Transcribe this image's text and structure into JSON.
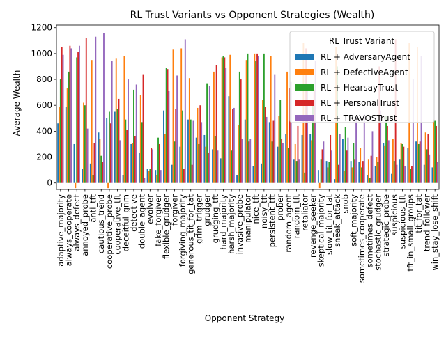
{
  "chart_data": {
    "type": "bar",
    "title": "RL Trust Variants vs Opponent Strategies (Wealth)",
    "xlabel": "Opponent Strategy",
    "ylabel": "Average Wealth",
    "ylim": [
      -50,
      1220
    ],
    "yticks": [
      0,
      200,
      400,
      600,
      800,
      1000,
      1200
    ],
    "grid": false,
    "legend": {
      "title": "RL Trust Variant",
      "placement": "top-right"
    },
    "categories": [
      "adaptive_majority",
      "always_cooperate",
      "always_defect",
      "annoyed_probe",
      "anti_tft",
      "cautious_trend",
      "cooperative_probe",
      "cooperative_tft",
      "deceitful_grim",
      "detective",
      "double_agent",
      "evolver",
      "fake_forgiver",
      "flexible_grudger",
      "forgiver",
      "forgiving_majority",
      "generous_tit_for_tat",
      "grim_trigger",
      "grudger",
      "grudging_tft",
      "hard_majority",
      "harsh_majority",
      "invasive_probe",
      "manipulator",
      "nice_tft",
      "noisy_tft",
      "persistent_tft",
      "prober",
      "random_agent",
      "random_tft",
      "retaliator",
      "revenge_seeker",
      "skeptical_majority",
      "slow_tit_for_tat",
      "sneak_attack",
      "snob",
      "soft_majority",
      "sometimes_cooperate",
      "sometimes_defect",
      "stochastic_grudger",
      "strategic_probe",
      "suspicious",
      "suspicious_tft",
      "tft_in_small_groups",
      "tit_for_tat",
      "trend_follower",
      "win_stay_lose_shift"
    ],
    "series": [
      {
        "name": "RL + AdversaryAgent",
        "color": "#1f77b4",
        "values": [
          460,
          590,
          300,
          110,
          150,
          390,
          500,
          550,
          60,
          300,
          230,
          110,
          100,
          560,
          140,
          280,
          490,
          350,
          370,
          260,
          190,
          670,
          60,
          490,
          130,
          150,
          470,
          280,
          380,
          180,
          370,
          380,
          100,
          170,
          30,
          340,
          170,
          160,
          60,
          130,
          310,
          70,
          180,
          270,
          320,
          140,
          120
        ]
      },
      {
        "name": "RL + DefectiveAgent",
        "color": "#ff7f0e",
        "values": [
          590,
          730,
          -40,
          620,
          950,
          340,
          -40,
          960,
          980,
          310,
          680,
          90,
          60,
          380,
          1030,
          1040,
          810,
          580,
          280,
          860,
          970,
          990,
          450,
          950,
          1000,
          640,
          980,
          520,
          860,
          300,
          1080,
          330,
          -40,
          120,
          1050,
          90,
          120,
          270,
          180,
          200,
          290,
          340,
          310,
          1080,
          1050,
          390,
          490
        ]
      },
      {
        "name": "RL + HearsayTrust",
        "color": "#2ca02c",
        "values": [
          800,
          860,
          970,
          600,
          60,
          210,
          550,
          570,
          490,
          720,
          470,
          110,
          350,
          890,
          320,
          560,
          490,
          300,
          770,
          360,
          980,
          250,
          860,
          1000,
          940,
          1000,
          320,
          640,
          270,
          170,
          80,
          640,
          180,
          160,
          900,
          430,
          310,
          120,
          40,
          160,
          520,
          170,
          300,
          110,
          300,
          260,
          480
        ]
      },
      {
        "name": "RL + PersonalTrust",
        "color": "#d62728",
        "values": [
          1050,
          1060,
          1010,
          1120,
          310,
          160,
          460,
          650,
          410,
          360,
          840,
          270,
          300,
          880,
          570,
          110,
          140,
          600,
          230,
          910,
          970,
          570,
          800,
          320,
          1000,
          590,
          480,
          340,
          730,
          440,
          1040,
          720,
          260,
          370,
          140,
          250,
          180,
          170,
          210,
          900,
          440,
          1110,
          280,
          130,
          320,
          380,
          440
        ]
      },
      {
        "name": "RL + TRAVOSTrust",
        "color": "#9467bd",
        "values": [
          990,
          1040,
          1060,
          420,
          1130,
          1160,
          940,
          330,
          800,
          760,
          40,
          260,
          100,
          710,
          830,
          1110,
          480,
          470,
          750,
          250,
          890,
          580,
          340,
          340,
          980,
          510,
          840,
          310,
          780,
          180,
          740,
          940,
          320,
          250,
          380,
          350,
          510,
          530,
          400,
          560,
          330,
          140,
          130,
          800,
          980,
          220,
          160
        ]
      }
    ]
  }
}
